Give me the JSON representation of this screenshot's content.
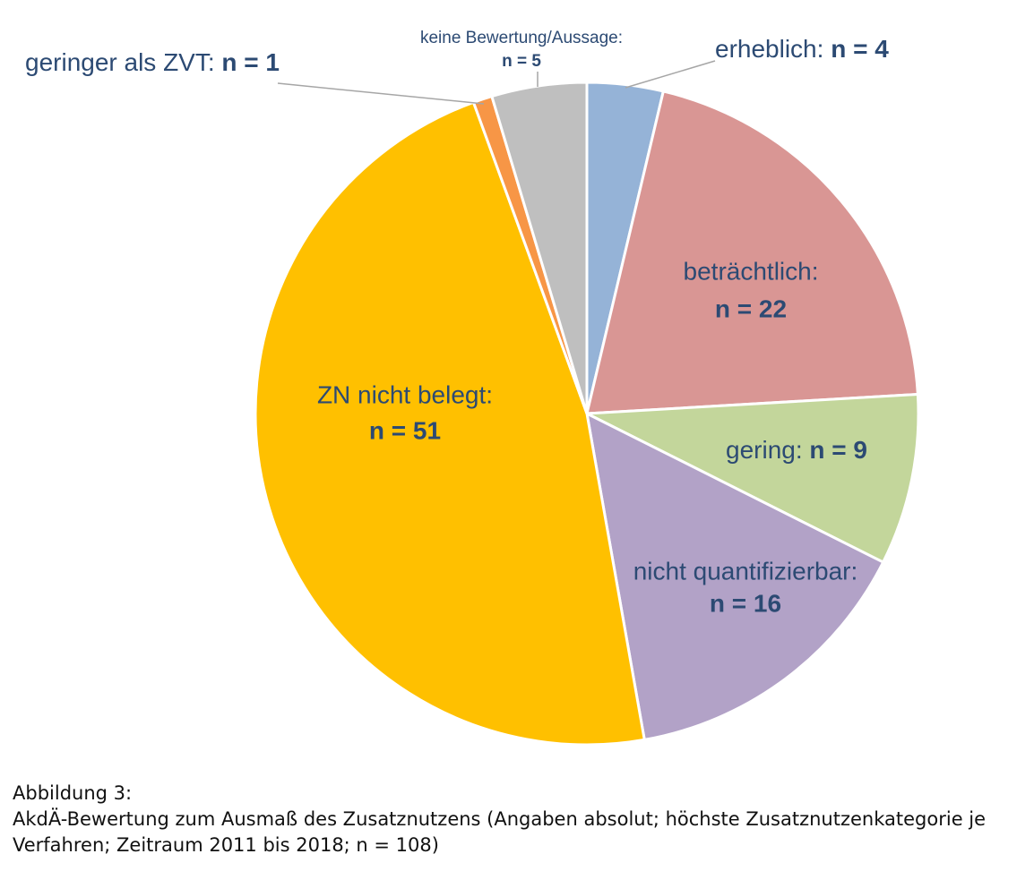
{
  "chart_data": {
    "type": "pie",
    "categories": [
      "erheblich:",
      "beträchtlich:",
      "gering:",
      "nicht quantifizierbar:",
      "ZN nicht belegt:",
      "geringer als ZVT:",
      "keine Bewertung/Aussage:"
    ],
    "values": [
      4,
      22,
      9,
      16,
      51,
      1,
      5
    ],
    "value_labels": [
      "n = 4",
      "n = 22",
      "n = 9",
      "n = 16",
      "n = 51",
      "n = 1",
      "n = 5"
    ],
    "colors": [
      "#95b3d7",
      "#d99694",
      "#c3d69b",
      "#b2a2c7",
      "#ffc000",
      "#f79646",
      "#bfbfbf"
    ]
  },
  "caption": {
    "label": "Abbildung 3:",
    "text": "AkdÄ-Bewertung zum Ausmaß des Zusatznutzens (Angaben absolut; höchste Zusatznutzenkategorie je Verfahren; Zeitraum 2011 bis 2018; n = 108)"
  }
}
